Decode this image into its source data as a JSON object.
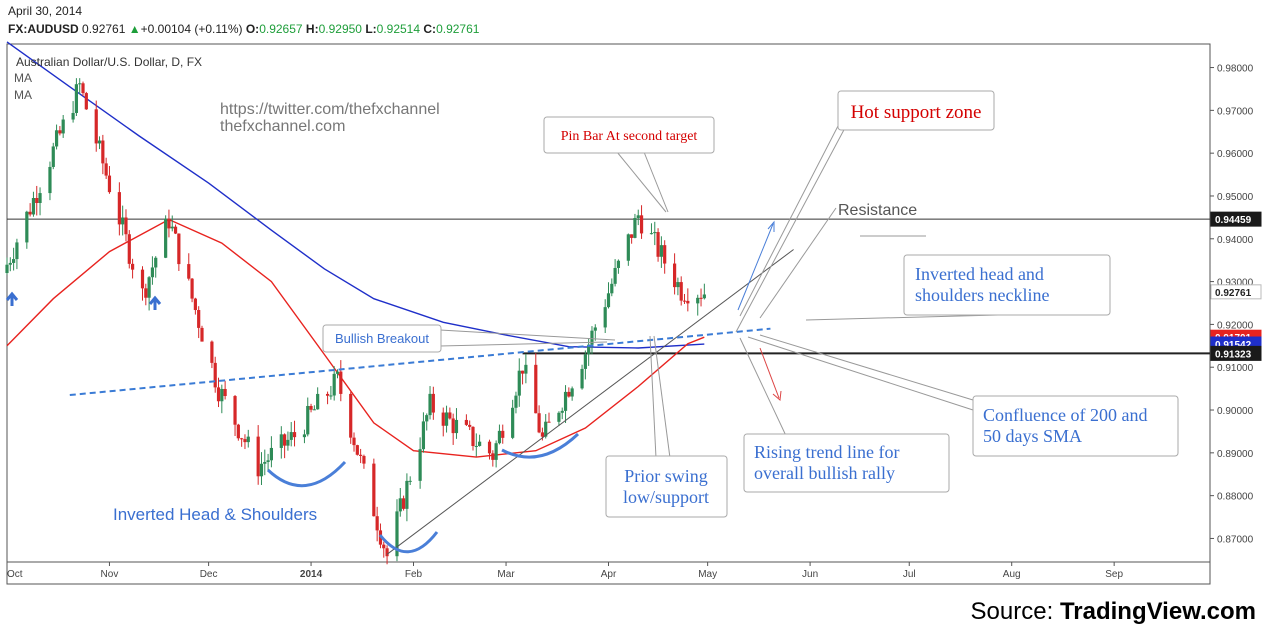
{
  "header": {
    "date": "April 30, 2014",
    "symbol": "FX:AUDUSD",
    "last": "0.92761",
    "change": "+0.00104 (+0.11%)",
    "change_arrow": "▲",
    "o_label": "O:",
    "o_value": "0.92657",
    "h_label": "H:",
    "h_value": "0.92950",
    "l_label": "L:",
    "l_value": "0.92514",
    "c_label": "C:",
    "c_value": "0.92761"
  },
  "legend": {
    "instrument": "Australian Dollar/U.S. Dollar, D, FX",
    "ma1": "MA",
    "ma2": "MA"
  },
  "watermark": {
    "line1": "https://twitter.com/thefxchannel",
    "line2": "thefxchannel.com"
  },
  "source": {
    "prefix": "Source: ",
    "brand": "TradingView.com"
  },
  "colors": {
    "bull": "#2e8b57",
    "bear": "#d62728",
    "sma50": "#e8231f",
    "sma200": "#1f2fc9",
    "neckline": "#3a7bd5",
    "annotation_blue": "#3a6fd0",
    "annotation_red": "#d40000",
    "resistance_badge": "#1a1a1a",
    "badge_red": "#e8231f",
    "badge_blue": "#1f2fc9"
  },
  "chart_data": {
    "type": "candlestick",
    "title": "Australian Dollar/U.S. Dollar, D, FX",
    "x_ticks": [
      "Oct",
      "Nov",
      "Dec",
      "2014",
      "Feb",
      "Mar",
      "Apr",
      "May",
      "Jun",
      "Jul",
      "Aug",
      "Sep"
    ],
    "y_ticks": [
      "0.98000",
      "0.97000",
      "0.96000",
      "0.95000",
      "0.94000",
      "0.93000",
      "0.92000",
      "0.91000",
      "0.90000",
      "0.89000",
      "0.88000",
      "0.87000"
    ],
    "ylim": [
      0.8645,
      0.9855
    ],
    "x_range": [
      "2013-10-01",
      "2014-09-30"
    ],
    "last_price": 0.92761,
    "price_badges": [
      {
        "value": "0.94459",
        "color": "#1a1a1a"
      },
      {
        "value": "0.92761",
        "color": "#ffffff"
      },
      {
        "value": "0.91701",
        "color": "#e8231f"
      },
      {
        "value": "0.91542",
        "color": "#1f2fc9"
      },
      {
        "value": "0.91323",
        "color": "#1a1a1a"
      }
    ],
    "key_closes": [
      {
        "date": "2013-10-01",
        "close": 0.934
      },
      {
        "date": "2013-10-23",
        "close": 0.9757
      },
      {
        "date": "2013-11-07",
        "close": 0.937
      },
      {
        "date": "2013-11-11",
        "close": 0.927
      },
      {
        "date": "2013-11-19",
        "close": 0.9445
      },
      {
        "date": "2013-12-04",
        "close": 0.905
      },
      {
        "date": "2013-12-16",
        "close": 0.8868
      },
      {
        "date": "2013-12-27",
        "close": 0.894
      },
      {
        "date": "2014-01-09",
        "close": 0.907
      },
      {
        "date": "2014-01-24",
        "close": 0.8659
      },
      {
        "date": "2014-02-06",
        "close": 0.901
      },
      {
        "date": "2014-02-25",
        "close": 0.8895
      },
      {
        "date": "2014-03-06",
        "close": 0.9105
      },
      {
        "date": "2014-03-12",
        "close": 0.893
      },
      {
        "date": "2014-03-25",
        "close": 0.9135
      },
      {
        "date": "2014-04-10",
        "close": 0.9455
      },
      {
        "date": "2014-04-23",
        "close": 0.928
      },
      {
        "date": "2014-04-30",
        "close": 0.92761
      }
    ],
    "series": [
      {
        "name": "MA",
        "period": 50,
        "color": "#e8231f",
        "points": [
          [
            "2013-10-01",
            0.915
          ],
          [
            "2013-10-15",
            0.926
          ],
          [
            "2013-11-01",
            0.937
          ],
          [
            "2013-11-19",
            0.9445
          ],
          [
            "2013-12-05",
            0.939
          ],
          [
            "2013-12-20",
            0.93
          ],
          [
            "2014-01-05",
            0.913
          ],
          [
            "2014-01-20",
            0.897
          ],
          [
            "2014-02-01",
            0.8905
          ],
          [
            "2014-02-20",
            0.889
          ],
          [
            "2014-03-10",
            0.8905
          ],
          [
            "2014-03-25",
            0.8958
          ],
          [
            "2014-04-10",
            0.9055
          ],
          [
            "2014-04-25",
            0.9155
          ],
          [
            "2014-04-30",
            0.917
          ]
        ]
      },
      {
        "name": "MA",
        "period": 200,
        "color": "#1f2fc9",
        "points": [
          [
            "2013-10-01",
            0.986
          ],
          [
            "2013-10-20",
            0.9755
          ],
          [
            "2013-11-10",
            0.964
          ],
          [
            "2013-12-01",
            0.953
          ],
          [
            "2013-12-20",
            0.942
          ],
          [
            "2014-01-05",
            0.933
          ],
          [
            "2014-01-20",
            0.926
          ],
          [
            "2014-02-10",
            0.9205
          ],
          [
            "2014-03-01",
            0.9175
          ],
          [
            "2014-03-20",
            0.9148
          ],
          [
            "2014-04-10",
            0.9145
          ],
          [
            "2014-04-30",
            0.9154
          ]
        ]
      }
    ],
    "horizontal_lines": [
      {
        "label": "Resistance",
        "value": 0.94459
      },
      {
        "label": "",
        "value": 0.91323
      }
    ],
    "neckline": {
      "from": [
        "2013-10-20",
        0.9035
      ],
      "to": [
        "2014-05-20",
        0.919
      ]
    },
    "rising_trend_line": {
      "from": [
        "2014-01-24",
        0.8663
      ],
      "to": [
        "2014-05-27",
        0.9375
      ]
    },
    "annotations": [
      {
        "text": "Pin Bar At second target",
        "color": "#d40000"
      },
      {
        "text": "Hot support zone",
        "color": "#d40000"
      },
      {
        "text": "Resistance",
        "color": "#555555"
      },
      {
        "lines": [
          "Inverted head and",
          "shoulders neckline"
        ],
        "color": "#3a6fd0"
      },
      {
        "text": "Bullish Breakout",
        "color": "#3a6fd0"
      },
      {
        "lines": [
          "Confluence of 200 and",
          "50 days SMA"
        ],
        "color": "#3a6fd0"
      },
      {
        "lines": [
          "Rising trend line for",
          "overall bullish rally"
        ],
        "color": "#3a6fd0"
      },
      {
        "lines": [
          "Prior swing",
          "low/support"
        ],
        "color": "#3a6fd0"
      },
      {
        "text": "Inverted Head & Shoulders",
        "color": "#3a6fd0"
      }
    ]
  }
}
